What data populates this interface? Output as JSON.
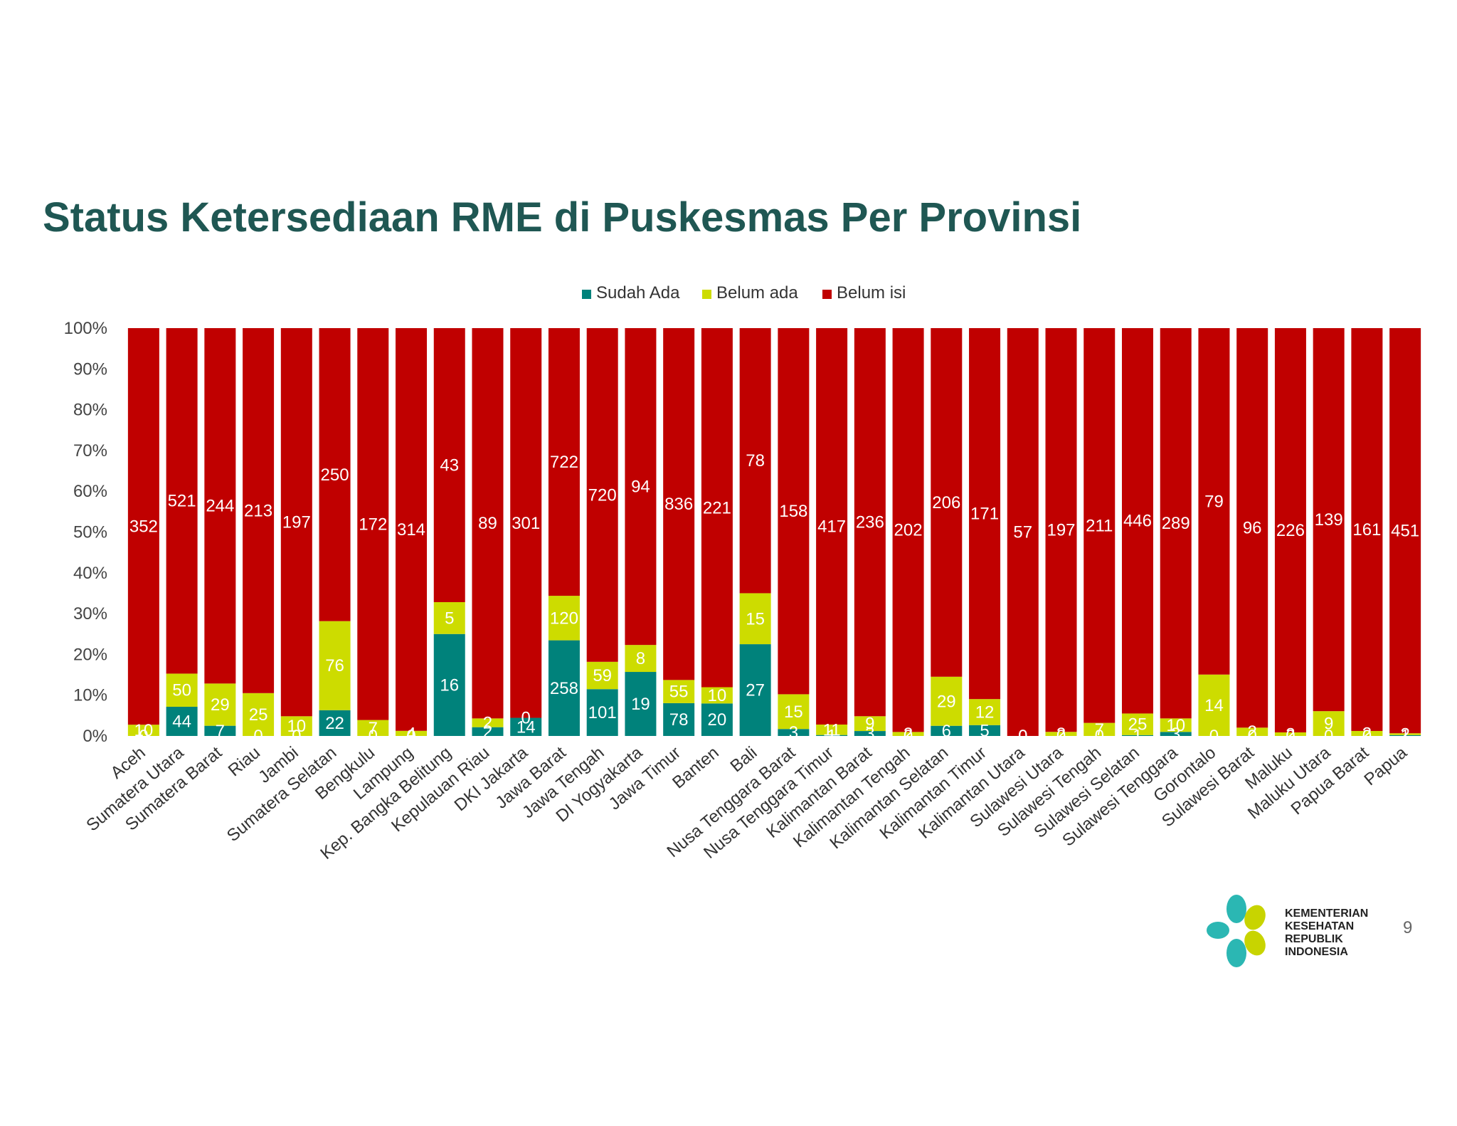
{
  "title": "Status Ketersediaan RME di Puskesmas Per Provinsi",
  "page_number": "9",
  "logo": {
    "lines": [
      "KEMENTERIAN",
      "KESEHATAN",
      "REPUBLIK",
      "INDONESIA"
    ],
    "colors": {
      "teal": "#2bb7b3",
      "green": "#c8d400"
    }
  },
  "chart_data": {
    "type": "bar",
    "stacking": "percent",
    "title": "",
    "xlabel": "",
    "ylabel": "",
    "ylim": [
      0,
      100
    ],
    "yticks": [
      "0%",
      "10%",
      "20%",
      "30%",
      "40%",
      "50%",
      "60%",
      "70%",
      "80%",
      "90%",
      "100%"
    ],
    "legend_position": "top",
    "grid": false,
    "categories": [
      "Aceh",
      "Sumatera Utara",
      "Sumatera Barat",
      "Riau",
      "Jambi",
      "Sumatera Selatan",
      "Bengkulu",
      "Lampung",
      "Kep. Bangka Belitung",
      "Kepulauan Riau",
      "DKI Jakarta",
      "Jawa Barat",
      "Jawa Tengah",
      "DI Yogyakarta",
      "Jawa Timur",
      "Banten",
      "Bali",
      "Nusa Tenggara Barat",
      "Nusa Tenggara Timur",
      "Kalimantan Barat",
      "Kalimantan Tengah",
      "Kalimantan Selatan",
      "Kalimantan Timur",
      "Kalimantan Utara",
      "Sulawesi Utara",
      "Sulawesi Tengah",
      "Sulawesi Selatan",
      "Sulawesi Tenggara",
      "Gorontalo",
      "Sulawesi Barat",
      "Maluku",
      "Maluku Utara",
      "Papua Barat",
      "Papua"
    ],
    "series": [
      {
        "name": "Sudah Ada",
        "color": "#00827b",
        "values": [
          0,
          44,
          7,
          0,
          0,
          22,
          0,
          0,
          16,
          2,
          14,
          258,
          101,
          19,
          78,
          20,
          27,
          3,
          1,
          3,
          0,
          6,
          5,
          0,
          0,
          0,
          1,
          3,
          0,
          0,
          0,
          0,
          0,
          1
        ]
      },
      {
        "name": "Belum ada",
        "color": "#cddc00",
        "values": [
          10,
          50,
          29,
          25,
          10,
          76,
          7,
          4,
          5,
          2,
          0,
          120,
          59,
          8,
          55,
          10,
          15,
          15,
          11,
          9,
          2,
          29,
          12,
          0,
          2,
          7,
          25,
          10,
          14,
          2,
          2,
          9,
          2,
          2
        ]
      },
      {
        "name": "Belum isi",
        "color": "#c00000",
        "values": [
          352,
          521,
          244,
          213,
          197,
          250,
          172,
          314,
          43,
          89,
          301,
          722,
          720,
          94,
          836,
          221,
          78,
          158,
          417,
          236,
          202,
          206,
          171,
          57,
          197,
          211,
          446,
          289,
          79,
          96,
          226,
          139,
          161,
          451
        ]
      }
    ]
  }
}
